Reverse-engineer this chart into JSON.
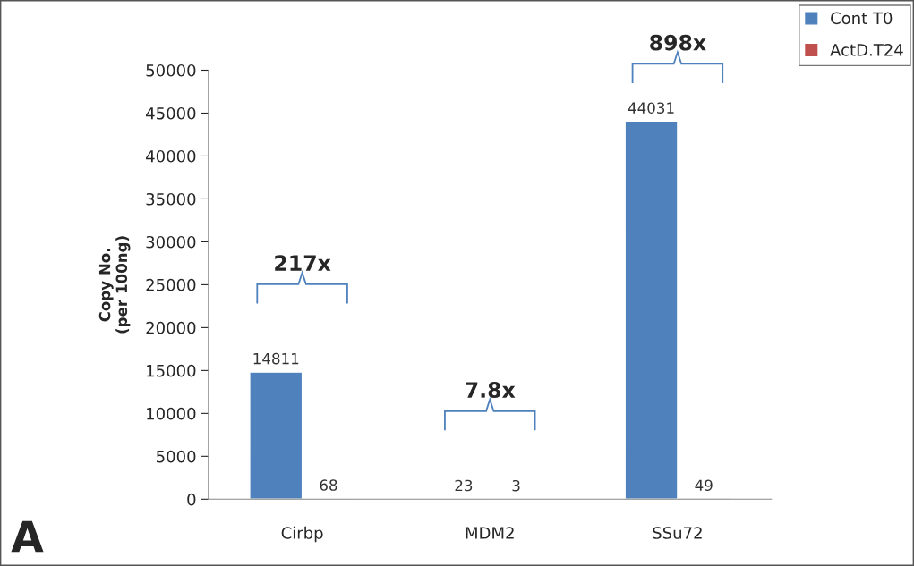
{
  "chart_data": {
    "type": "bar",
    "ylabel": "Copy No.\n(per 100ng)",
    "categories": [
      "Cirbp",
      "MDM2",
      "SSu72"
    ],
    "series": [
      {
        "name": "Cont T0",
        "color": "#4f81bd",
        "values": [
          14811,
          23,
          44031
        ]
      },
      {
        "name": "ActD.T24",
        "color": "#c0504d",
        "values": [
          68,
          3,
          49
        ]
      }
    ],
    "ylim": [
      0,
      50000
    ],
    "yticks": [
      0,
      5000,
      10000,
      15000,
      20000,
      25000,
      30000,
      35000,
      40000,
      45000,
      50000
    ],
    "grid": false,
    "legend": "top right",
    "data_labels": true,
    "annotations": [
      "217x",
      "7.8x",
      "898x",
      "A"
    ]
  }
}
